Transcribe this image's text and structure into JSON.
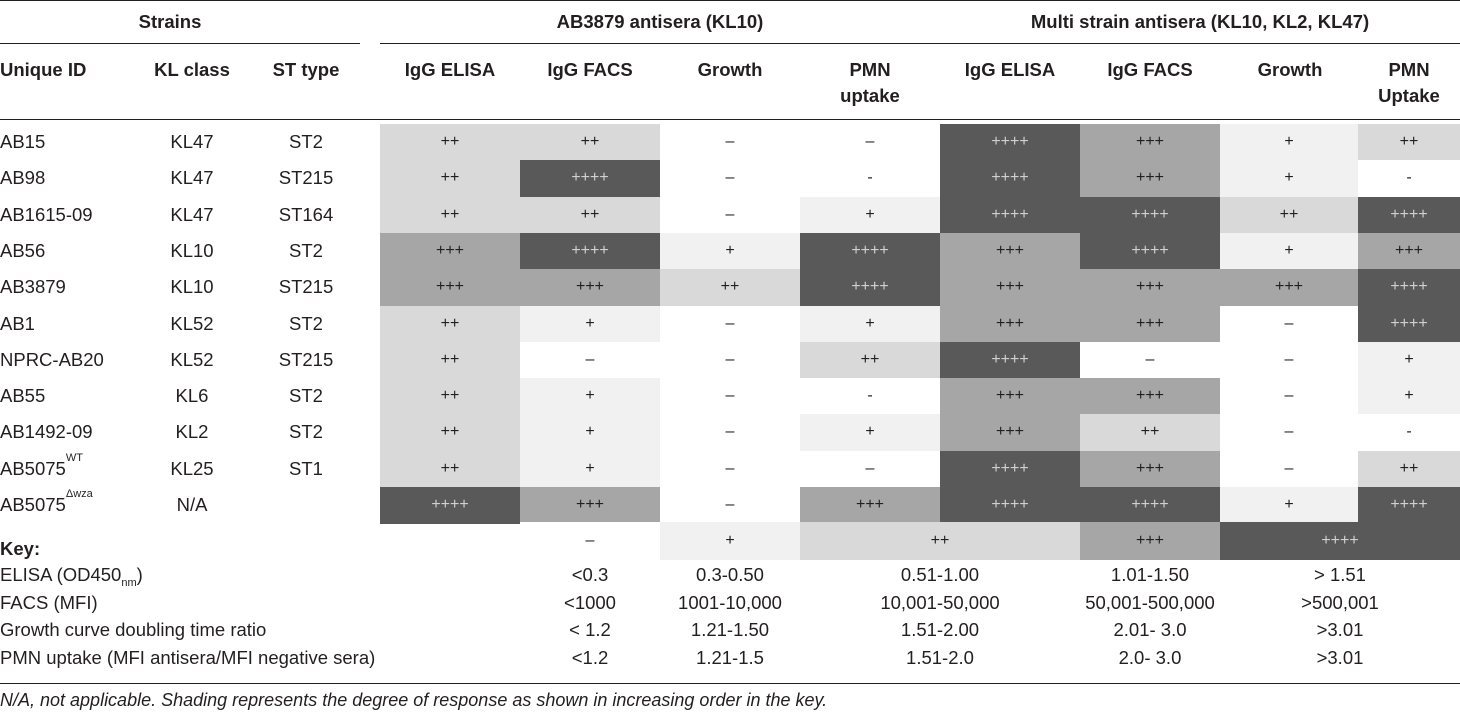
{
  "header": {
    "group_strains": "Strains",
    "group_ab3879": "AB3879 antisera (KL10)",
    "group_multi": "Multi strain antisera (KL10, KL2, KL47)",
    "col_unique_id": "Unique ID",
    "col_kl_class": "KL class",
    "col_st_type": "ST type",
    "col_igg_elisa": "IgG ELISA",
    "col_igg_facs": "IgG FACS",
    "col_growth": "Growth",
    "col_pmn_a_line1": "PMN",
    "col_pmn_a_line2": "uptake",
    "col_pmn_b_line1": "PMN",
    "col_pmn_b_line2": "Uptake"
  },
  "rows": [
    {
      "id": "AB15",
      "id_sup": "",
      "kl": "KL47",
      "st": "ST2",
      "vals": [
        "++",
        "++",
        "–",
        "–",
        "++++",
        "+++",
        "+",
        "++"
      ]
    },
    {
      "id": "AB98",
      "id_sup": "",
      "kl": "KL47",
      "st": "ST215",
      "vals": [
        "++",
        "++++",
        "–",
        "-",
        "++++",
        "+++",
        "+",
        "-"
      ]
    },
    {
      "id": "AB1615-09",
      "id_sup": "",
      "kl": "KL47",
      "st": "ST164",
      "vals": [
        "++",
        "++",
        "–",
        "+",
        "++++",
        "++++",
        "++",
        "++++"
      ]
    },
    {
      "id": "AB56",
      "id_sup": "",
      "kl": "KL10",
      "st": "ST2",
      "vals": [
        "+++",
        "++++",
        "+",
        "++++",
        "+++",
        "++++",
        "+",
        "+++"
      ]
    },
    {
      "id": "AB3879",
      "id_sup": "",
      "kl": "KL10",
      "st": "ST215",
      "vals": [
        "+++",
        "+++",
        "++",
        "++++",
        "+++",
        "+++",
        "+++",
        "++++"
      ]
    },
    {
      "id": "AB1",
      "id_sup": "",
      "kl": "KL52",
      "st": "ST2",
      "vals": [
        "++",
        "+",
        "–",
        "+",
        "+++",
        "+++",
        "–",
        "++++"
      ]
    },
    {
      "id": "NPRC-AB20",
      "id_sup": "",
      "kl": "KL52",
      "st": "ST215",
      "vals": [
        "++",
        "–",
        "–",
        "++",
        "++++",
        "–",
        "–",
        "+"
      ]
    },
    {
      "id": "AB55",
      "id_sup": "",
      "kl": "KL6",
      "st": "ST2",
      "vals": [
        "++",
        "+",
        "–",
        "-",
        "+++",
        "+++",
        "–",
        "+"
      ]
    },
    {
      "id": "AB1492-09",
      "id_sup": "",
      "kl": "KL2",
      "st": "ST2",
      "vals": [
        "++",
        "+",
        "–",
        "+",
        "+++",
        "++",
        "–",
        "-"
      ]
    },
    {
      "id": "AB5075",
      "id_sup": "WT",
      "kl": "KL25",
      "st": "ST1",
      "vals": [
        "++",
        "+",
        "–",
        "–",
        "++++",
        "+++",
        "–",
        "++"
      ]
    },
    {
      "id": "AB5075",
      "id_sup": "Δwza",
      "kl": "N/A",
      "st": "",
      "vals": [
        "++++",
        "+++",
        "–",
        "+++",
        "++++",
        "++++",
        "+",
        "++++"
      ]
    }
  ],
  "key": {
    "title": "Key:",
    "levels": [
      "–",
      "+",
      "++",
      "+++",
      "++++"
    ],
    "rows": [
      {
        "label": "ELISA (OD450",
        "label_sub": "nm",
        "label_end": ")",
        "vals": [
          "<0.3",
          "0.3-0.50",
          "0.51-1.00",
          "1.01-1.50",
          "> 1.51"
        ]
      },
      {
        "label": "FACS (MFI)",
        "label_sub": "",
        "label_end": "",
        "vals": [
          "<1000",
          "1001-10,000",
          "10,001-50,000",
          "50,001-500,000",
          ">500,001"
        ]
      },
      {
        "label": "Growth curve doubling time ratio",
        "label_sub": "",
        "label_end": "",
        "vals": [
          "< 1.2",
          "1.21-1.50",
          "1.51-2.00",
          "2.01- 3.0",
          ">3.01"
        ]
      },
      {
        "label": "PMN uptake (MFI antisera/MFI negative sera)",
        "label_sub": "",
        "label_end": "",
        "vals": [
          "<1.2",
          "1.21-1.5",
          "1.51-2.0",
          "2.0- 3.0",
          ">3.01"
        ]
      }
    ]
  },
  "footnote": "N/A, not applicable. Shading represents the degree of response as shown in increasing order in the key.",
  "colors": {
    "level0": "#ffffff",
    "level1": "#f1f1f1",
    "level2": "#d9d9d9",
    "level3": "#a6a6a6",
    "level4": "#595959"
  }
}
